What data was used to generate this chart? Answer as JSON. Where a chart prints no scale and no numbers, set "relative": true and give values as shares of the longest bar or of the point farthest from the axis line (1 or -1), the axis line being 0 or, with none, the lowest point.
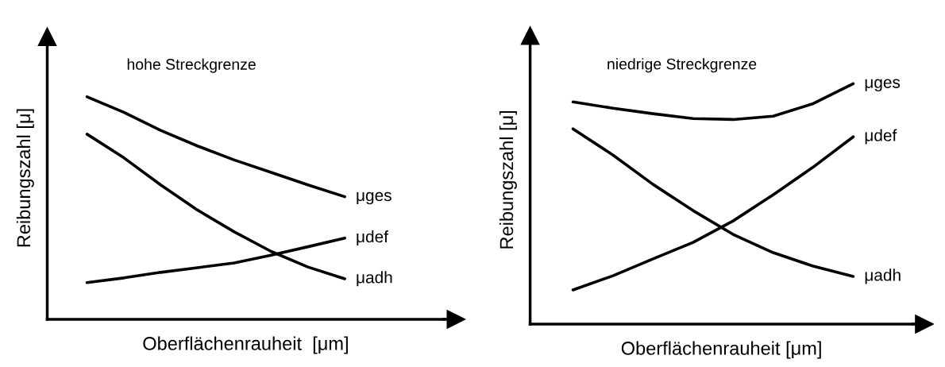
{
  "chart_data": [
    {
      "type": "line",
      "title": "hohe Streckgrenze",
      "xlabel": "Oberflächenrauheit  [μm]",
      "ylabel": "Reibungszahl [μ]",
      "relative": true,
      "categories": [
        null,
        null,
        null,
        null,
        null,
        null,
        null,
        null
      ],
      "marker": "none",
      "line_style": "solid",
      "series": [
        {
          "name": "μges",
          "color": "#000000",
          "values": [
            1,
            0.93,
            0.849,
            0.779,
            0.716,
            0.66,
            0.604,
            0.551
          ]
        },
        {
          "name": "μdef",
          "color": "#000000",
          "values": [
            0.165,
            0.186,
            0.211,
            0.232,
            0.253,
            0.288,
            0.326,
            0.365
          ]
        },
        {
          "name": "μadh",
          "color": "#000000",
          "values": [
            0.832,
            0.726,
            0.604,
            0.491,
            0.393,
            0.305,
            0.235,
            0.182
          ]
        }
      ]
    },
    {
      "type": "line",
      "title": "niedrige Streckgrenze",
      "xlabel": "Oberflächenrauheit [μm]",
      "ylabel": "Reibungszahl [μ]",
      "relative": true,
      "categories": [
        null,
        null,
        null,
        null,
        null,
        null,
        null,
        null
      ],
      "marker": "none",
      "line_style": "solid",
      "series": [
        {
          "name": "μges",
          "color": "#000000",
          "values": [
            0.924,
            0.898,
            0.875,
            0.855,
            0.851,
            0.865,
            0.917,
            1
          ]
        },
        {
          "name": "μdef",
          "color": "#000000",
          "values": [
            0.142,
            0.201,
            0.271,
            0.34,
            0.429,
            0.538,
            0.653,
            0.779
          ]
        },
        {
          "name": "μadh",
          "color": "#000000",
          "values": [
            0.812,
            0.703,
            0.581,
            0.472,
            0.373,
            0.297,
            0.241,
            0.198
          ]
        }
      ]
    }
  ]
}
